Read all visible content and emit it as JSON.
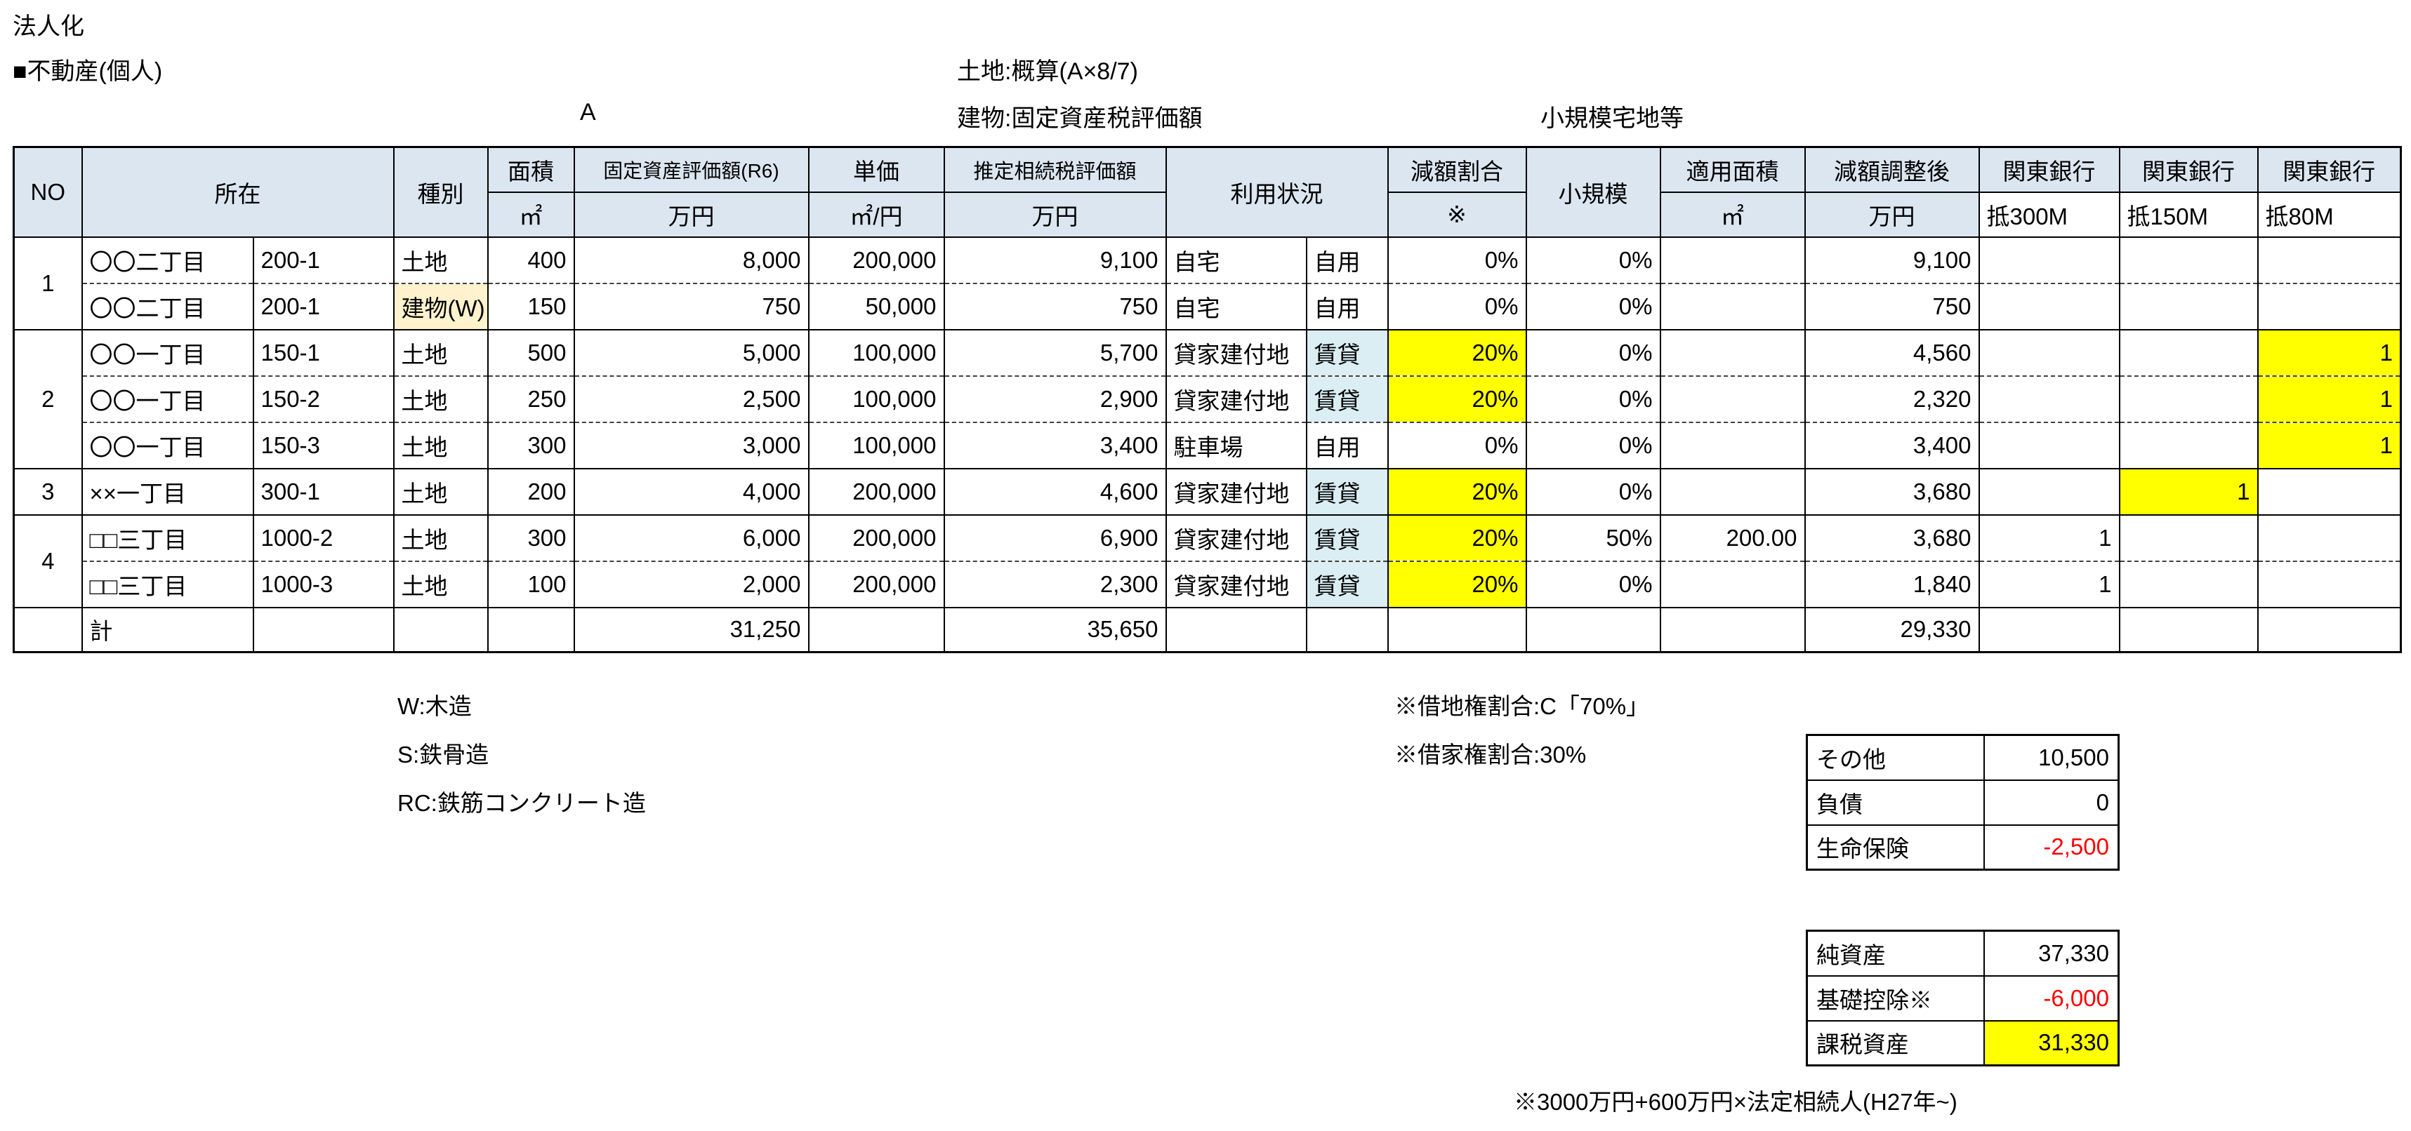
{
  "page": {
    "corner_label": "法人化",
    "section_label": "■不動産(個人)",
    "land_note": "土地:概算(A×8/7)",
    "column_a_label": "A",
    "building_note": "建物:固定資産税評価額",
    "small_scale_note": "小規模宅地等"
  },
  "table": {
    "header": {
      "no": "NO",
      "location": "所在",
      "type": "種別",
      "area": "面積",
      "area_unit": "㎡",
      "fixed_val": "固定資産評価額(R6)",
      "fixed_unit": "万円",
      "unit_price": "単価",
      "unit_price_unit": "㎡/円",
      "est_val": "推定相続税評価額",
      "est_unit": "万円",
      "usage": "利用状況",
      "reduction": "減額割合",
      "reduction_unit": "※",
      "small": "小規模",
      "applied": "適用面積",
      "applied_unit": "㎡",
      "adjusted": "減額調整後",
      "adjusted_unit": "万円",
      "bank1": "関東銀行",
      "bank1_sub": "抵300M",
      "bank2": "関東銀行",
      "bank2_sub": "抵150M",
      "bank3": "関東銀行",
      "bank3_sub": "抵80M"
    },
    "groups": [
      {
        "no": "1",
        "rows": [
          [
            "〇〇二丁目",
            "200-1",
            "土地",
            "400",
            "8,000",
            "200,000",
            "9,100",
            "自宅",
            "自用",
            "0%",
            "0%",
            "",
            "9,100",
            "",
            "",
            ""
          ],
          [
            "〇〇二丁目",
            "200-1",
            {
              "v": "建物(W)",
              "bg": "cream",
              "small": true
            },
            "150",
            "750",
            "50,000",
            "750",
            "自宅",
            "自用",
            "0%",
            "0%",
            "",
            "750",
            "",
            "",
            ""
          ]
        ]
      },
      {
        "no": "2",
        "rows": [
          [
            "〇〇一丁目",
            "150-1",
            "土地",
            "500",
            "5,000",
            "100,000",
            "5,700",
            "貸家建付地",
            {
              "v": "賃貸",
              "bg": "blue"
            },
            {
              "v": "20%",
              "bg": "yellow"
            },
            "0%",
            "",
            "4,560",
            "",
            "",
            {
              "v": "1",
              "bg": "yellow"
            }
          ],
          [
            "〇〇一丁目",
            "150-2",
            "土地",
            "250",
            "2,500",
            "100,000",
            "2,900",
            "貸家建付地",
            {
              "v": "賃貸",
              "bg": "blue"
            },
            {
              "v": "20%",
              "bg": "yellow"
            },
            "0%",
            "",
            "2,320",
            "",
            "",
            {
              "v": "1",
              "bg": "yellow"
            }
          ],
          [
            "〇〇一丁目",
            "150-3",
            "土地",
            "300",
            "3,000",
            "100,000",
            "3,400",
            "駐車場",
            "自用",
            "0%",
            "0%",
            "",
            "3,400",
            "",
            "",
            {
              "v": "1",
              "bg": "yellow"
            }
          ]
        ]
      },
      {
        "no": "3",
        "rows": [
          [
            "××一丁目",
            "300-1",
            "土地",
            "200",
            "4,000",
            "200,000",
            "4,600",
            "貸家建付地",
            {
              "v": "賃貸",
              "bg": "blue"
            },
            {
              "v": "20%",
              "bg": "yellow"
            },
            "0%",
            "",
            "3,680",
            "",
            {
              "v": "1",
              "bg": "yellow"
            },
            ""
          ]
        ]
      },
      {
        "no": "4",
        "rows": [
          [
            "□□三丁目",
            "1000-2",
            "土地",
            "300",
            "6,000",
            "200,000",
            "6,900",
            "貸家建付地",
            {
              "v": "賃貸",
              "bg": "blue"
            },
            {
              "v": "20%",
              "bg": "yellow"
            },
            "50%",
            "200.00",
            "3,680",
            "1",
            "",
            ""
          ],
          [
            "□□三丁目",
            "1000-3",
            "土地",
            "100",
            "2,000",
            "200,000",
            "2,300",
            "貸家建付地",
            {
              "v": "賃貸",
              "bg": "blue"
            },
            {
              "v": "20%",
              "bg": "yellow"
            },
            "0%",
            "",
            "1,840",
            "1",
            "",
            ""
          ]
        ]
      }
    ],
    "total_row": [
      "",
      "計",
      "",
      "",
      "",
      "31,250",
      "",
      "35,650",
      "",
      "",
      "",
      "",
      "",
      "29,330",
      "",
      "",
      ""
    ]
  },
  "legend": {
    "items": [
      "W:木造",
      "S:鉄骨造",
      "RC:鉄筋コンクリート造"
    ]
  },
  "notes": {
    "items": [
      "※借地権割合:C「70%」",
      "※借家権割合:30%"
    ]
  },
  "summary_top": {
    "rows": [
      {
        "label": "その他",
        "value": "10,500"
      },
      {
        "label": "負債",
        "value": "0"
      },
      {
        "label": "生命保険",
        "value": "-2,500"
      }
    ]
  },
  "summary_bottom": {
    "rows": [
      {
        "label": "純資産",
        "value": "37,330"
      },
      {
        "label": "基礎控除※",
        "value": "-6,000"
      },
      {
        "label": "課税資産",
        "value": "31,330"
      }
    ]
  },
  "footnote": "※3000万円+600万円×法定相続人(H27年~)",
  "colors": {
    "header_fill": "#DCE6F1",
    "rental_fill": "#DAEEF3",
    "building_fill": "#FFF2CC",
    "highlight_yellow": "#FFFF00",
    "negative_text": "#FF0000",
    "border": "#000000"
  }
}
